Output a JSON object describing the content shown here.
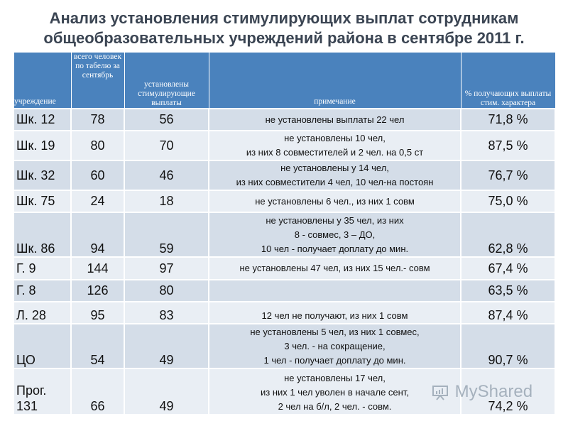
{
  "title": {
    "line1": "Анализ установления стимулирующих выплат сотрудникам",
    "line2": "общеобразовательных учреждений района в сентябре 2011 г."
  },
  "table": {
    "headers": [
      "учреждение",
      "всего человек по табелю за сентябрь",
      "установлены стимулирующие выплаты",
      "примечание",
      "% получающих выплаты стим. характера"
    ],
    "rows": [
      {
        "name": "Шк. 12",
        "total": "78",
        "set": "56",
        "note": [
          "не установлены выплаты 22 чел"
        ],
        "pct": "71,8 %"
      },
      {
        "name": "Шк. 19",
        "total": "80",
        "set": "70",
        "note": [
          "не установлены 10 чел,",
          "из них 8 совместителей  и 2 чел. на 0,5 ст"
        ],
        "pct": "87,5 %"
      },
      {
        "name": "Шк. 32",
        "total": "60",
        "set": "46",
        "note": [
          "не установлены у 14 чел,",
          "из них совместители  4 чел, 10 чел-на постоян"
        ],
        "pct": "76,7 %"
      },
      {
        "name": "Шк. 75",
        "total": "24",
        "set": "18",
        "note": [
          "не установлены 6 чел., из них 1 совм"
        ],
        "pct": "75,0 %"
      },
      {
        "name": "Шк. 86",
        "total": "94",
        "set": "59",
        "note": [
          "не установлены у 35 чел, из них",
          "8 - совмес, 3 – ДО,",
          "10 чел - получает доплату до мин."
        ],
        "pct": "62,8 %"
      },
      {
        "name": "Г. 9",
        "total": "144",
        "set": "97",
        "note": [
          "не установлены 47 чел, из них 15 чел.- совм"
        ],
        "pct": "67,4 %"
      },
      {
        "name": "Г. 8",
        "total": "126",
        "set": "80",
        "note": [],
        "pct": "63,5 %"
      },
      {
        "name": "Л. 28",
        "total": "95",
        "set": "83",
        "note": [
          "12 чел не получают, из них 1 совм"
        ],
        "pct": "87,4 %"
      },
      {
        "name": "ЦО",
        "total": "54",
        "set": "49",
        "note": [
          "не установлены 5 чел, из них 1 совмес,",
          "3 чел. - на сокращение,",
          "1 чел - получает доплату до мин."
        ],
        "pct": "90,7 %"
      },
      {
        "name": "Прог. 131",
        "total": "66",
        "set": "49",
        "note": [
          "не установлены 17 чел,",
          "из них 1 чел уволен в начале сент,",
          "2 чел на б/л, 2 чел. - совм."
        ],
        "pct": "74,2 %"
      }
    ]
  },
  "watermark": "MyShared",
  "colors": {
    "header_bg": "#4a82bd",
    "row_dark": "#d4dde8",
    "row_light": "#e9eef4",
    "title": "#3b4553"
  }
}
